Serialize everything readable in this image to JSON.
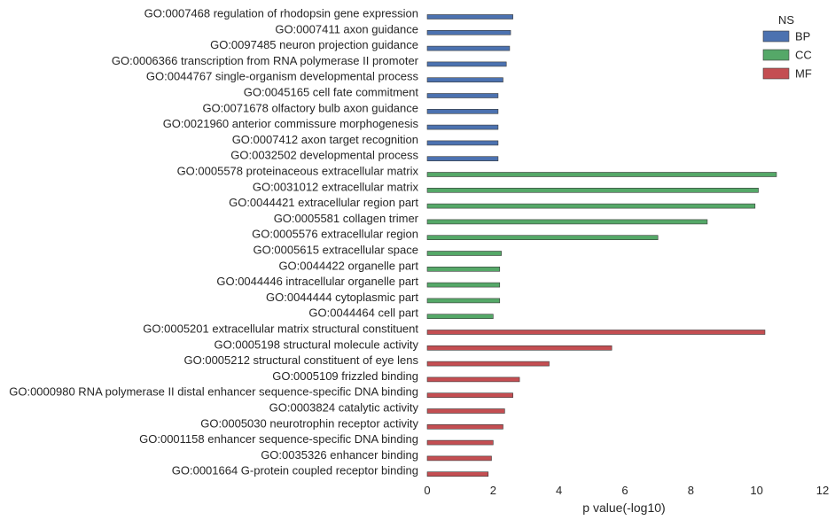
{
  "chart_data": {
    "type": "bar",
    "orientation": "horizontal",
    "xlabel": "p value(-log10)",
    "ylabel": "",
    "title": "",
    "xlim": [
      0,
      12
    ],
    "xticks": [
      "0",
      "2",
      "4",
      "6",
      "8",
      "10",
      "12"
    ],
    "grid": false,
    "legend": {
      "title": "NS",
      "placement": "top-right",
      "entries": [
        {
          "name": "BP",
          "color": "#4c72b0"
        },
        {
          "name": "CC",
          "color": "#55a868"
        },
        {
          "name": "MF",
          "color": "#c44e52"
        }
      ]
    },
    "categories": [
      {
        "label": "GO:0007468 regulation of rhodopsin gene expression",
        "value": 2.6,
        "ns": "BP"
      },
      {
        "label": "GO:0007411 axon guidance",
        "value": 2.53,
        "ns": "BP"
      },
      {
        "label": "GO:0097485 neuron projection guidance",
        "value": 2.5,
        "ns": "BP"
      },
      {
        "label": "GO:0006366 transcription from RNA polymerase II promoter",
        "value": 2.4,
        "ns": "BP"
      },
      {
        "label": "GO:0044767 single-organism developmental process",
        "value": 2.3,
        "ns": "BP"
      },
      {
        "label": "GO:0045165 cell fate commitment",
        "value": 2.15,
        "ns": "BP"
      },
      {
        "label": "GO:0071678 olfactory bulb axon guidance",
        "value": 2.15,
        "ns": "BP"
      },
      {
        "label": "GO:0021960 anterior commissure morphogenesis",
        "value": 2.15,
        "ns": "BP"
      },
      {
        "label": "GO:0007412 axon target recognition",
        "value": 2.15,
        "ns": "BP"
      },
      {
        "label": "GO:0032502 developmental process",
        "value": 2.15,
        "ns": "BP"
      },
      {
        "label": "GO:0005578 proteinaceous extracellular matrix",
        "value": 10.6,
        "ns": "CC"
      },
      {
        "label": "GO:0031012 extracellular matrix",
        "value": 10.05,
        "ns": "CC"
      },
      {
        "label": "GO:0044421 extracellular region part",
        "value": 9.95,
        "ns": "CC"
      },
      {
        "label": "GO:0005581 collagen trimer",
        "value": 8.5,
        "ns": "CC"
      },
      {
        "label": "GO:0005576 extracellular region",
        "value": 7.0,
        "ns": "CC"
      },
      {
        "label": "GO:0005615 extracellular space",
        "value": 2.25,
        "ns": "CC"
      },
      {
        "label": "GO:0044422 organelle part",
        "value": 2.2,
        "ns": "CC"
      },
      {
        "label": "GO:0044446 intracellular organelle part",
        "value": 2.2,
        "ns": "CC"
      },
      {
        "label": "GO:0044444 cytoplasmic part",
        "value": 2.2,
        "ns": "CC"
      },
      {
        "label": "GO:0044464 cell part",
        "value": 2.0,
        "ns": "CC"
      },
      {
        "label": "GO:0005201 extracellular matrix structural constituent",
        "value": 10.25,
        "ns": "MF"
      },
      {
        "label": "GO:0005198 structural molecule activity",
        "value": 5.6,
        "ns": "MF"
      },
      {
        "label": "GO:0005212 structural constituent of eye lens",
        "value": 3.7,
        "ns": "MF"
      },
      {
        "label": "GO:0005109 frizzled binding",
        "value": 2.8,
        "ns": "MF"
      },
      {
        "label": "GO:0000980 RNA polymerase II distal enhancer sequence-specific DNA binding",
        "value": 2.6,
        "ns": "MF"
      },
      {
        "label": "GO:0003824 catalytic activity",
        "value": 2.35,
        "ns": "MF"
      },
      {
        "label": "GO:0005030 neurotrophin receptor activity",
        "value": 2.3,
        "ns": "MF"
      },
      {
        "label": "GO:0001158 enhancer sequence-specific DNA binding",
        "value": 2.0,
        "ns": "MF"
      },
      {
        "label": "GO:0035326 enhancer binding",
        "value": 1.95,
        "ns": "MF"
      },
      {
        "label": "GO:0001664 G-protein coupled receptor binding",
        "value": 1.85,
        "ns": "MF"
      }
    ]
  }
}
